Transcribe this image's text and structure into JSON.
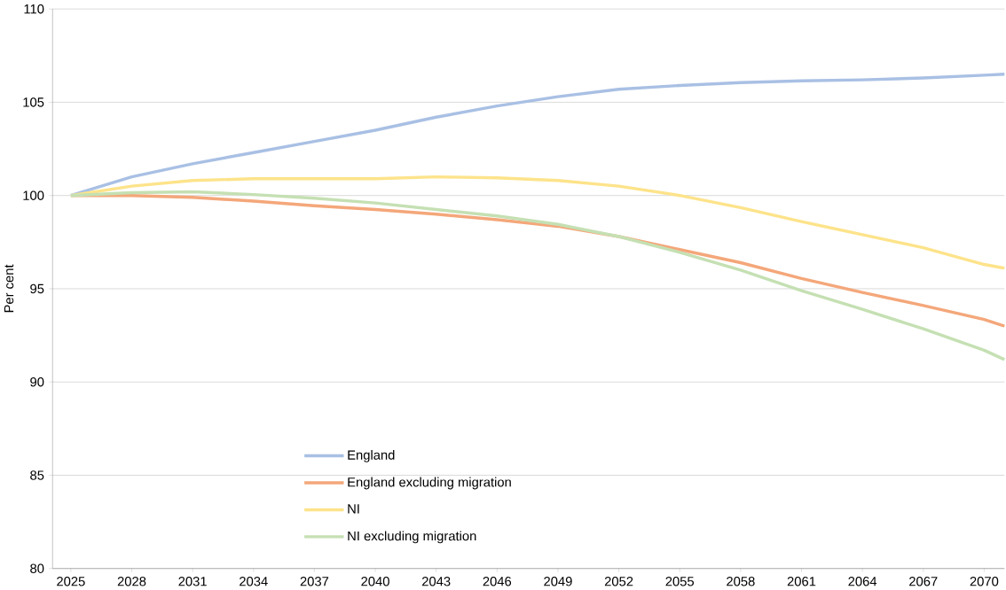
{
  "chart_data": {
    "type": "line",
    "ylabel": "Per cent",
    "x": [
      2025,
      2028,
      2031,
      2034,
      2037,
      2040,
      2043,
      2046,
      2049,
      2052,
      2055,
      2058,
      2061,
      2064,
      2067,
      2070,
      2071
    ],
    "series": [
      {
        "name": "England",
        "color": "#a9c0e4",
        "values": [
          100,
          101.0,
          101.7,
          102.3,
          102.9,
          103.5,
          104.2,
          104.8,
          105.3,
          105.7,
          105.9,
          106.05,
          106.15,
          106.2,
          106.3,
          106.45,
          106.5
        ]
      },
      {
        "name": "England excluding migration",
        "color": "#f4a77a",
        "values": [
          100,
          100.0,
          99.9,
          99.7,
          99.45,
          99.25,
          99.0,
          98.7,
          98.35,
          97.8,
          97.1,
          96.4,
          95.55,
          94.8,
          94.1,
          93.35,
          93.0
        ]
      },
      {
        "name": "NI",
        "color": "#fde38a",
        "values": [
          100,
          100.5,
          100.8,
          100.9,
          100.9,
          100.9,
          101.0,
          100.95,
          100.8,
          100.5,
          100.0,
          99.35,
          98.6,
          97.9,
          97.2,
          96.3,
          96.1
        ]
      },
      {
        "name": "NI excluding migration",
        "color": "#c5e0b3",
        "values": [
          100,
          100.15,
          100.2,
          100.05,
          99.85,
          99.6,
          99.25,
          98.9,
          98.45,
          97.8,
          96.95,
          96.0,
          94.9,
          93.9,
          92.85,
          91.7,
          91.2
        ]
      }
    ],
    "xlim": [
      2024.1,
      2071
    ],
    "xticks": [
      2025,
      2028,
      2031,
      2034,
      2037,
      2040,
      2043,
      2046,
      2049,
      2052,
      2055,
      2058,
      2061,
      2064,
      2067,
      2070
    ],
    "ylim": [
      80,
      110
    ],
    "yticks": [
      80,
      85,
      90,
      95,
      100,
      105,
      110
    ],
    "grid": "y",
    "legend": "bottom",
    "marker": "none",
    "line_style": "solid"
  }
}
